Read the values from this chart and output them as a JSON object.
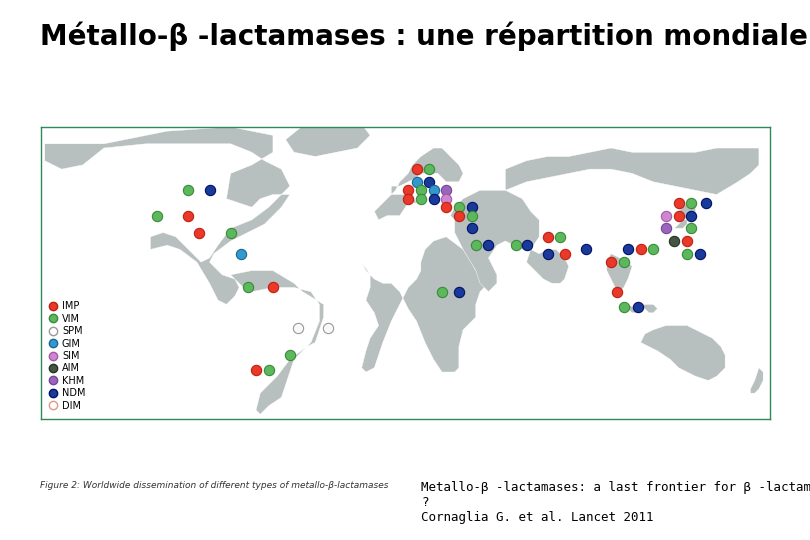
{
  "title": "Métallo-β -lactamases : une répartition mondiale",
  "subtitle_line1": "Metallo-β -lactamases: a last frontier for β -lactams",
  "subtitle_line2": "?",
  "subtitle_line3": "Cornaglia G. et al. Lancet 2011",
  "figure_caption": "Figure 2: Worldwide dissemination of different types of metallo-β-lactamases",
  "background_color": "#ffffff",
  "ocean_color": "#ffffff",
  "land_color": "#b8bfbf",
  "border_color": "#ffffff",
  "box_color": "#2e8b57",
  "legend_items": [
    {
      "label": "IMP",
      "color": "#e8392a",
      "filled": true,
      "edge": "#c02010"
    },
    {
      "label": "VIM",
      "color": "#5cb85c",
      "filled": true,
      "edge": "#3a8a3a"
    },
    {
      "label": "SPM",
      "color": "#f8f8f8",
      "filled": false,
      "edge": "#999999"
    },
    {
      "label": "GIM",
      "color": "#3399cc",
      "filled": true,
      "edge": "#1a6699"
    },
    {
      "label": "SIM",
      "color": "#cc88cc",
      "filled": true,
      "edge": "#aa55aa"
    },
    {
      "label": "AIM",
      "color": "#445544",
      "filled": true,
      "edge": "#223322"
    },
    {
      "label": "KHM",
      "color": "#9966bb",
      "filled": true,
      "edge": "#774499"
    },
    {
      "label": "NDM",
      "color": "#1a3a99",
      "filled": true,
      "edge": "#001166"
    },
    {
      "label": "DIM",
      "color": "#ffccbb",
      "filled": false,
      "edge": "#dd9988"
    }
  ],
  "geo_dots": [
    {
      "lon": -100,
      "lat": 50,
      "color": "#5cb85c",
      "edge": "#3a8a3a"
    },
    {
      "lon": -90,
      "lat": 50,
      "color": "#1a3a99",
      "edge": "#001166"
    },
    {
      "lon": -115,
      "lat": 38,
      "color": "#5cb85c",
      "edge": "#3a8a3a"
    },
    {
      "lon": -100,
      "lat": 38,
      "color": "#e8392a",
      "edge": "#c02010"
    },
    {
      "lon": -95,
      "lat": 30,
      "color": "#e8392a",
      "edge": "#c02010"
    },
    {
      "lon": -80,
      "lat": 30,
      "color": "#5cb85c",
      "edge": "#3a8a3a"
    },
    {
      "lon": -75,
      "lat": 20,
      "color": "#3399cc",
      "edge": "#1a6699"
    },
    {
      "lon": -72,
      "lat": 4,
      "color": "#5cb85c",
      "edge": "#3a8a3a"
    },
    {
      "lon": -60,
      "lat": 4,
      "color": "#e8392a",
      "edge": "#c02010"
    },
    {
      "lon": -48,
      "lat": -15,
      "color": "#f8f8f8",
      "edge": "#999999"
    },
    {
      "lon": -34,
      "lat": -15,
      "color": "#f8f8f8",
      "edge": "#999999"
    },
    {
      "lon": -52,
      "lat": -28,
      "color": "#5cb85c",
      "edge": "#3a8a3a"
    },
    {
      "lon": -68,
      "lat": -35,
      "color": "#e8392a",
      "edge": "#c02010"
    },
    {
      "lon": -62,
      "lat": -35,
      "color": "#5cb85c",
      "edge": "#3a8a3a"
    },
    {
      "lon": 8,
      "lat": 60,
      "color": "#e8392a",
      "edge": "#c02010"
    },
    {
      "lon": 14,
      "lat": 60,
      "color": "#5cb85c",
      "edge": "#3a8a3a"
    },
    {
      "lon": 8,
      "lat": 54,
      "color": "#3399cc",
      "edge": "#1a6699"
    },
    {
      "lon": 14,
      "lat": 54,
      "color": "#1a3a99",
      "edge": "#001166"
    },
    {
      "lon": 4,
      "lat": 50,
      "color": "#e8392a",
      "edge": "#c02010"
    },
    {
      "lon": 10,
      "lat": 50,
      "color": "#5cb85c",
      "edge": "#3a8a3a"
    },
    {
      "lon": 16,
      "lat": 50,
      "color": "#3399cc",
      "edge": "#1a6699"
    },
    {
      "lon": 22,
      "lat": 50,
      "color": "#9966bb",
      "edge": "#774499"
    },
    {
      "lon": 4,
      "lat": 46,
      "color": "#e8392a",
      "edge": "#c02010"
    },
    {
      "lon": 10,
      "lat": 46,
      "color": "#5cb85c",
      "edge": "#3a8a3a"
    },
    {
      "lon": 16,
      "lat": 46,
      "color": "#1a3a99",
      "edge": "#001166"
    },
    {
      "lon": 22,
      "lat": 46,
      "color": "#cc88cc",
      "edge": "#aa55aa"
    },
    {
      "lon": 22,
      "lat": 42,
      "color": "#e8392a",
      "edge": "#c02010"
    },
    {
      "lon": 28,
      "lat": 42,
      "color": "#5cb85c",
      "edge": "#3a8a3a"
    },
    {
      "lon": 34,
      "lat": 42,
      "color": "#1a3a99",
      "edge": "#001166"
    },
    {
      "lon": 28,
      "lat": 38,
      "color": "#e8392a",
      "edge": "#c02010"
    },
    {
      "lon": 34,
      "lat": 38,
      "color": "#5cb85c",
      "edge": "#3a8a3a"
    },
    {
      "lon": 34,
      "lat": 32,
      "color": "#1a3a99",
      "edge": "#001166"
    },
    {
      "lon": 36,
      "lat": 24,
      "color": "#5cb85c",
      "edge": "#3a8a3a"
    },
    {
      "lon": 42,
      "lat": 24,
      "color": "#1a3a99",
      "edge": "#001166"
    },
    {
      "lon": 55,
      "lat": 24,
      "color": "#5cb85c",
      "edge": "#3a8a3a"
    },
    {
      "lon": 60,
      "lat": 24,
      "color": "#1a3a99",
      "edge": "#001166"
    },
    {
      "lon": 20,
      "lat": 2,
      "color": "#5cb85c",
      "edge": "#3a8a3a"
    },
    {
      "lon": 28,
      "lat": 2,
      "color": "#1a3a99",
      "edge": "#001166"
    },
    {
      "lon": 70,
      "lat": 28,
      "color": "#e8392a",
      "edge": "#c02010"
    },
    {
      "lon": 76,
      "lat": 28,
      "color": "#5cb85c",
      "edge": "#3a8a3a"
    },
    {
      "lon": 70,
      "lat": 20,
      "color": "#1a3a99",
      "edge": "#001166"
    },
    {
      "lon": 78,
      "lat": 20,
      "color": "#e8392a",
      "edge": "#c02010"
    },
    {
      "lon": 88,
      "lat": 22,
      "color": "#1a3a99",
      "edge": "#001166"
    },
    {
      "lon": 100,
      "lat": 16,
      "color": "#e8392a",
      "edge": "#c02010"
    },
    {
      "lon": 106,
      "lat": 16,
      "color": "#5cb85c",
      "edge": "#3a8a3a"
    },
    {
      "lon": 103,
      "lat": 2,
      "color": "#e8392a",
      "edge": "#c02010"
    },
    {
      "lon": 106,
      "lat": -5,
      "color": "#5cb85c",
      "edge": "#3a8a3a"
    },
    {
      "lon": 113,
      "lat": -5,
      "color": "#1a3a99",
      "edge": "#001166"
    },
    {
      "lon": 108,
      "lat": 22,
      "color": "#1a3a99",
      "edge": "#001166"
    },
    {
      "lon": 114,
      "lat": 22,
      "color": "#e8392a",
      "edge": "#c02010"
    },
    {
      "lon": 120,
      "lat": 22,
      "color": "#5cb85c",
      "edge": "#3a8a3a"
    },
    {
      "lon": 126,
      "lat": 38,
      "color": "#cc88cc",
      "edge": "#aa55aa"
    },
    {
      "lon": 132,
      "lat": 38,
      "color": "#e8392a",
      "edge": "#c02010"
    },
    {
      "lon": 138,
      "lat": 38,
      "color": "#1a3a99",
      "edge": "#001166"
    },
    {
      "lon": 138,
      "lat": 32,
      "color": "#5cb85c",
      "edge": "#3a8a3a"
    },
    {
      "lon": 126,
      "lat": 32,
      "color": "#9966bb",
      "edge": "#774499"
    },
    {
      "lon": 132,
      "lat": 44,
      "color": "#e8392a",
      "edge": "#c02010"
    },
    {
      "lon": 138,
      "lat": 44,
      "color": "#5cb85c",
      "edge": "#3a8a3a"
    },
    {
      "lon": 145,
      "lat": 44,
      "color": "#1a3a99",
      "edge": "#001166"
    },
    {
      "lon": 130,
      "lat": 26,
      "color": "#445544",
      "edge": "#223322"
    },
    {
      "lon": 136,
      "lat": 26,
      "color": "#e8392a",
      "edge": "#c02010"
    },
    {
      "lon": 136,
      "lat": 20,
      "color": "#5cb85c",
      "edge": "#3a8a3a"
    },
    {
      "lon": 142,
      "lat": 20,
      "color": "#1a3a99",
      "edge": "#001166"
    }
  ],
  "title_fontsize": 20,
  "subtitle_fontsize": 9,
  "caption_fontsize": 6.5,
  "legend_fontsize": 7,
  "dot_size": 55
}
